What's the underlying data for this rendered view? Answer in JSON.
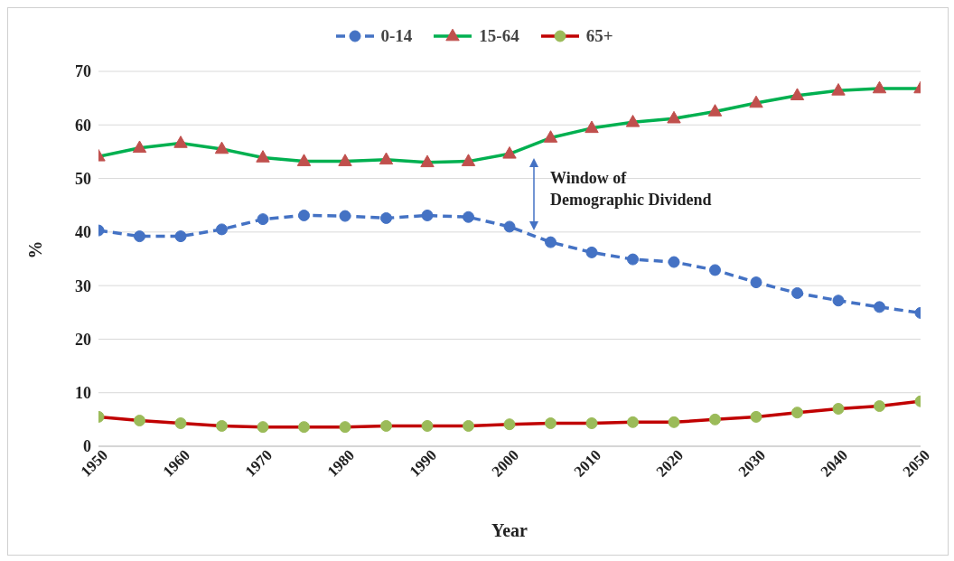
{
  "chart_data": {
    "type": "line",
    "xlabel": "Year",
    "ylabel": "%",
    "x": [
      1950,
      1955,
      1960,
      1965,
      1970,
      1975,
      1980,
      1985,
      1990,
      1995,
      2000,
      2005,
      2010,
      2015,
      2020,
      2025,
      2030,
      2035,
      2040,
      2045,
      2050
    ],
    "xlim": [
      1950,
      2050
    ],
    "xticks": [
      1950,
      1960,
      1970,
      1980,
      1990,
      2000,
      2010,
      2020,
      2030,
      2040,
      2050
    ],
    "ylim": [
      0,
      70
    ],
    "yticks": [
      0,
      10,
      20,
      30,
      40,
      50,
      60,
      70
    ],
    "grid": "y",
    "legend": "top",
    "annotations": [
      "Window of Demographic Dividend"
    ],
    "series": [
      {
        "name": "0-14",
        "color": "#4472c4",
        "marker": "circle",
        "line_style": "dashed",
        "values": [
          40.3,
          39.2,
          39.2,
          40.5,
          42.4,
          43.1,
          43.0,
          42.6,
          43.1,
          42.8,
          41.0,
          38.1,
          36.2,
          34.9,
          34.4,
          32.9,
          30.6,
          28.6,
          27.2,
          26.0,
          24.9
        ]
      },
      {
        "name": "15-64",
        "color": "#00b050",
        "colors": [
          "#c0504d",
          "#c0504d",
          "#c0504d",
          "#c0504d",
          "#c0504d",
          "#c0504d",
          "#c0504d",
          "#c0504d",
          "#c0504d",
          "#c0504d",
          "#c0504d",
          "#c0504d",
          "#c0504d",
          "#c0504d",
          "#c0504d",
          "#c0504d",
          "#c0504d",
          "#c0504d",
          "#c0504d",
          "#c0504d",
          "#c0504d"
        ],
        "marker": "triangle",
        "line_style": "solid",
        "values": [
          54.1,
          55.7,
          56.6,
          55.5,
          53.9,
          53.2,
          53.2,
          53.5,
          53.0,
          53.2,
          54.6,
          57.6,
          59.4,
          60.5,
          61.2,
          62.5,
          64.1,
          65.5,
          66.4,
          66.8,
          66.8
        ]
      },
      {
        "name": "65+",
        "color": "#c00000",
        "colors": [
          "#9bbb59",
          "#9bbb59",
          "#9bbb59",
          "#9bbb59",
          "#9bbb59",
          "#9bbb59",
          "#9bbb59",
          "#9bbb59",
          "#9bbb59",
          "#9bbb59",
          "#9bbb59",
          "#9bbb59",
          "#9bbb59",
          "#9bbb59",
          "#9bbb59",
          "#9bbb59",
          "#9bbb59",
          "#9bbb59",
          "#9bbb59",
          "#9bbb59",
          "#9bbb59"
        ],
        "marker": "circle",
        "line_style": "solid",
        "values": [
          5.5,
          4.8,
          4.3,
          3.8,
          3.6,
          3.6,
          3.6,
          3.8,
          3.8,
          3.8,
          4.1,
          4.3,
          4.3,
          4.5,
          4.5,
          5.0,
          5.5,
          6.3,
          7.0,
          7.5,
          8.4
        ]
      }
    ]
  }
}
